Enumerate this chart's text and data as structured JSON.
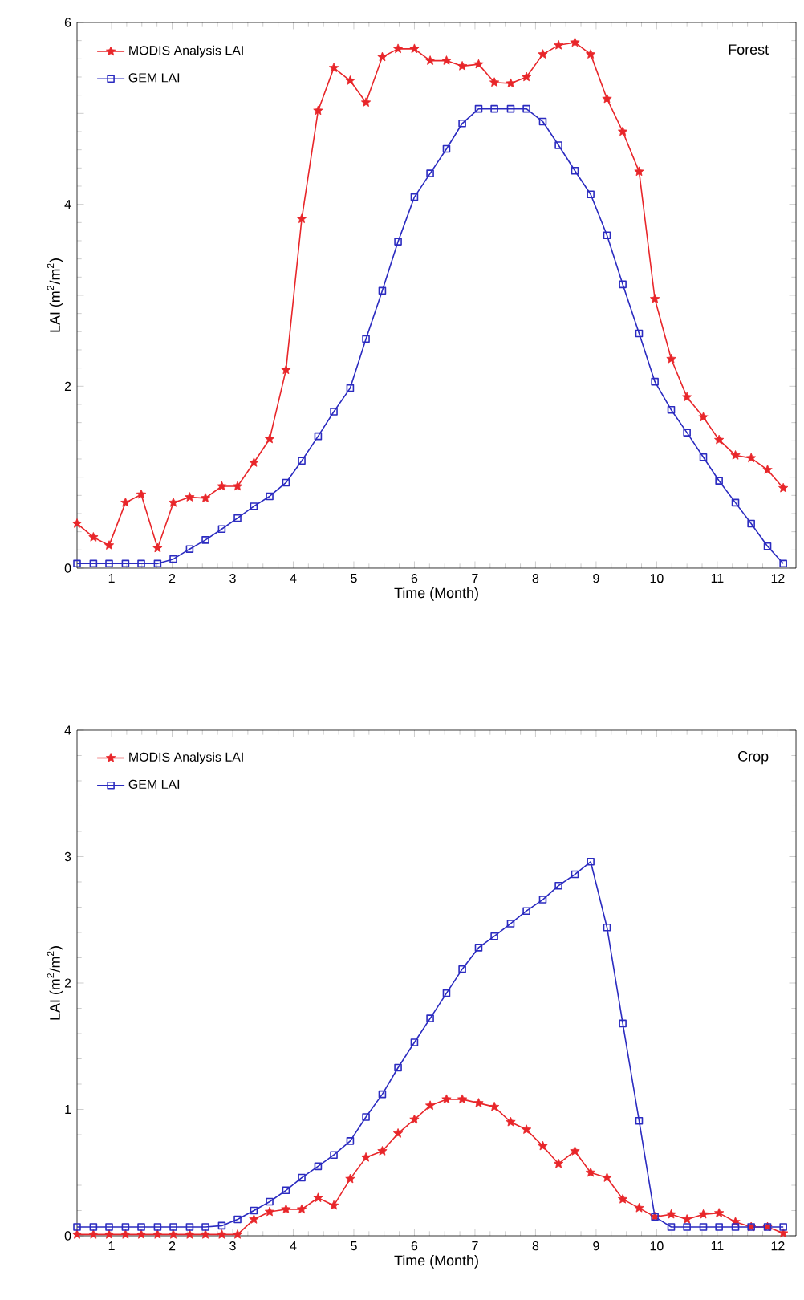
{
  "chart_data": [
    {
      "type": "line",
      "xlabel": "Time (Month)",
      "ylabel": "LAI (m$^{2}$/m$^{2}$)",
      "annotations": [
        "Forest"
      ],
      "x": [
        0.43,
        0.7,
        0.96,
        1.23,
        1.49,
        1.76,
        2.02,
        2.29,
        2.55,
        2.82,
        3.08,
        3.35,
        3.61,
        3.88,
        4.14,
        4.41,
        4.67,
        4.94,
        5.2,
        5.47,
        5.73,
        6.0,
        6.26,
        6.53,
        6.79,
        7.06,
        7.32,
        7.59,
        7.85,
        8.12,
        8.38,
        8.65,
        8.91,
        9.18,
        9.44,
        9.71,
        9.97,
        10.24,
        10.5,
        10.77,
        11.03,
        11.3,
        11.56,
        11.83,
        12.09
      ],
      "series": [
        {
          "name": "MODIS Analysis LAI",
          "color": "#e8262a",
          "marker": "star",
          "values": [
            0.49,
            0.34,
            0.25,
            0.72,
            0.81,
            0.22,
            0.72,
            0.78,
            0.77,
            0.9,
            0.9,
            1.16,
            1.42,
            2.18,
            3.84,
            5.03,
            5.5,
            5.36,
            5.12,
            5.62,
            5.71,
            5.71,
            5.58,
            5.58,
            5.52,
            5.54,
            5.34,
            5.33,
            5.4,
            5.65,
            5.75,
            5.78,
            5.65,
            5.16,
            4.8,
            4.36,
            2.96,
            2.3,
            1.88,
            1.66,
            1.41,
            1.24,
            1.21,
            1.08,
            0.88
          ]
        },
        {
          "name": "GEM LAI",
          "color": "#2b2bc0",
          "marker": "square",
          "values": [
            0.05,
            0.05,
            0.05,
            0.05,
            0.05,
            0.05,
            0.1,
            0.21,
            0.31,
            0.43,
            0.55,
            0.68,
            0.79,
            0.94,
            1.18,
            1.45,
            1.72,
            1.98,
            2.52,
            3.05,
            3.59,
            4.08,
            4.34,
            4.61,
            4.89,
            5.05,
            5.05,
            5.05,
            5.05,
            4.91,
            4.65,
            4.37,
            4.11,
            3.66,
            3.12,
            2.58,
            2.05,
            1.74,
            1.49,
            1.22,
            0.96,
            0.72,
            0.49,
            0.24,
            0.05
          ]
        }
      ],
      "xlim": [
        0.43,
        12.3
      ],
      "xticks": [
        1,
        2,
        3,
        4,
        5,
        6,
        7,
        8,
        9,
        10,
        11,
        12
      ],
      "ylim": [
        0,
        6
      ],
      "yticks": [
        0,
        {
          "value": 1,
          "label": null
        },
        2,
        {
          "value": 3,
          "label": null
        },
        4,
        {
          "value": 5,
          "label": null
        },
        6
      ],
      "legend": "top left",
      "grid": false
    },
    {
      "type": "line",
      "xlabel": "Time (Month)",
      "ylabel": "LAI (m$^{2}$/m$^{2}$)",
      "annotations": [
        "Crop"
      ],
      "x": [
        0.43,
        0.7,
        0.96,
        1.23,
        1.49,
        1.76,
        2.02,
        2.29,
        2.55,
        2.82,
        3.08,
        3.35,
        3.61,
        3.88,
        4.14,
        4.41,
        4.67,
        4.94,
        5.2,
        5.47,
        5.73,
        6.0,
        6.26,
        6.53,
        6.79,
        7.06,
        7.32,
        7.59,
        7.85,
        8.12,
        8.38,
        8.65,
        8.91,
        9.18,
        9.44,
        9.71,
        9.97,
        10.24,
        10.5,
        10.77,
        11.03,
        11.3,
        11.56,
        11.83,
        12.09
      ],
      "series": [
        {
          "name": "MODIS Analysis LAI",
          "color": "#e8262a",
          "marker": "star",
          "values": [
            0.01,
            0.01,
            0.01,
            0.01,
            0.01,
            0.01,
            0.01,
            0.01,
            0.01,
            0.01,
            0.01,
            0.13,
            0.19,
            0.21,
            0.21,
            0.3,
            0.24,
            0.45,
            0.62,
            0.67,
            0.81,
            0.92,
            1.03,
            1.08,
            1.08,
            1.05,
            1.02,
            0.9,
            0.84,
            0.71,
            0.57,
            0.67,
            0.5,
            0.46,
            0.29,
            0.22,
            0.15,
            0.17,
            0.13,
            0.17,
            0.18,
            0.11,
            0.07,
            0.07,
            0.02
          ]
        },
        {
          "name": "GEM LAI",
          "color": "#2b2bc0",
          "marker": "square",
          "values": [
            0.07,
            0.07,
            0.07,
            0.07,
            0.07,
            0.07,
            0.07,
            0.07,
            0.07,
            0.08,
            0.13,
            0.2,
            0.27,
            0.36,
            0.46,
            0.55,
            0.64,
            0.75,
            0.94,
            1.12,
            1.33,
            1.53,
            1.72,
            1.92,
            2.11,
            2.28,
            2.37,
            2.47,
            2.57,
            2.66,
            2.77,
            2.86,
            2.96,
            2.44,
            1.68,
            0.91,
            0.15,
            0.07,
            0.07,
            0.07,
            0.07,
            0.07,
            0.07,
            0.07,
            0.07
          ]
        }
      ],
      "xlim": [
        0.43,
        12.3
      ],
      "xticks": [
        1,
        2,
        3,
        4,
        5,
        6,
        7,
        8,
        9,
        10,
        11,
        12
      ],
      "ylim": [
        0,
        4
      ],
      "yticks": [
        0,
        1,
        2,
        3,
        4
      ],
      "legend": "top left",
      "grid": false
    }
  ]
}
